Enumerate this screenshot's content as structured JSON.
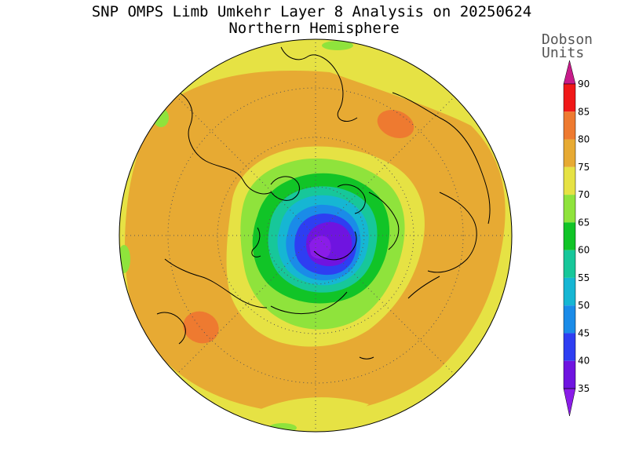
{
  "title": "SNP OMPS Limb Umkehr Layer 8 Analysis on 20250624",
  "subtitle": "Northern Hemisphere",
  "colorbar": {
    "unit_line1": "Dobson",
    "unit_line2": "Units",
    "levels": [
      "35",
      "40",
      "45",
      "50",
      "55",
      "60",
      "65",
      "70",
      "75",
      "80",
      "85",
      "90"
    ],
    "colors": [
      "#8a1ce8",
      "#6f14e0",
      "#2e3ef2",
      "#1a8be8",
      "#16b6d3",
      "#17c79a",
      "#11c427",
      "#8fe33c",
      "#e6e244",
      "#e7aa33",
      "#ee7a30",
      "#f01818",
      "#c81b8a"
    ]
  },
  "map": {
    "projection": "north polar stereographic",
    "ocean_color": "#e7aa33",
    "regions": [
      {
        "name": "low-35",
        "color": "#8a1ce8"
      },
      {
        "name": "low-40",
        "color": "#2e3ef2"
      },
      {
        "name": "low-50",
        "color": "#16b6d3"
      },
      {
        "name": "low-60",
        "color": "#11c427"
      },
      {
        "name": "low-65",
        "color": "#8fe33c"
      },
      {
        "name": "ring-70",
        "color": "#e6e244"
      },
      {
        "name": "high-80a",
        "color": "#ee7a30"
      },
      {
        "name": "high-80b",
        "color": "#ee7a30"
      }
    ]
  }
}
